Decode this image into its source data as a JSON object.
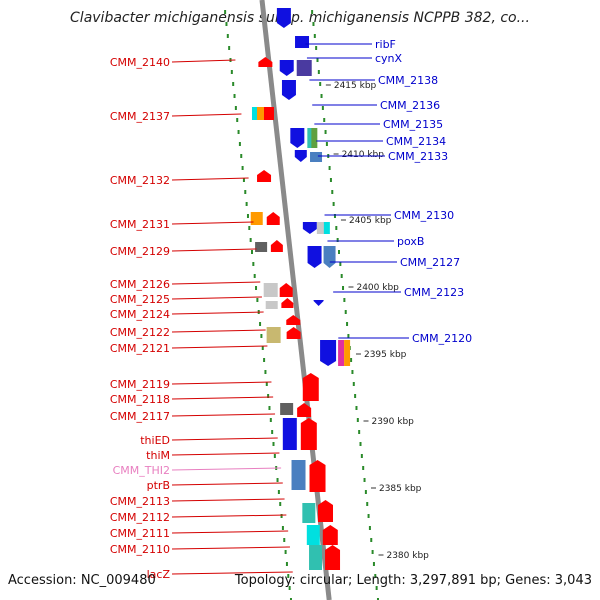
{
  "title": "Clavibacter michiganensis subsp. michiganensis NCPPB 382, co...",
  "footer": {
    "accession": "Accession: NC_009480",
    "topology": "Topology: circular; Length: 3,297,891 bp; Genes: 3,043"
  },
  "colors": {
    "reverse_strand_label": "#d40000",
    "forward_strand_label": "#0000cc",
    "pink_label": "#e87fc0",
    "axis": "#888888",
    "tick": "#2a8a2a"
  },
  "scale_labels": [
    "2415 kbp",
    "2410 kbp",
    "2405 kbp",
    "2400 kbp",
    "2395 kbp",
    "2390 kbp",
    "2385 kbp",
    "2380 kbp"
  ],
  "left_labels": [
    {
      "text": "CMM_2140",
      "color": "red"
    },
    {
      "text": "CMM_2137",
      "color": "red"
    },
    {
      "text": "CMM_2132",
      "color": "red"
    },
    {
      "text": "CMM_2131",
      "color": "red"
    },
    {
      "text": "CMM_2129",
      "color": "red"
    },
    {
      "text": "CMM_2126",
      "color": "red"
    },
    {
      "text": "CMM_2125",
      "color": "red"
    },
    {
      "text": "CMM_2124",
      "color": "red"
    },
    {
      "text": "CMM_2122",
      "color": "red"
    },
    {
      "text": "CMM_2121",
      "color": "red"
    },
    {
      "text": "CMM_2119",
      "color": "red"
    },
    {
      "text": "CMM_2118",
      "color": "red"
    },
    {
      "text": "CMM_2117",
      "color": "red"
    },
    {
      "text": "thiED",
      "color": "red"
    },
    {
      "text": "thiM",
      "color": "red"
    },
    {
      "text": "CMM_THI2",
      "color": "pink"
    },
    {
      "text": "ptrB",
      "color": "red"
    },
    {
      "text": "CMM_2113",
      "color": "red"
    },
    {
      "text": "CMM_2112",
      "color": "red"
    },
    {
      "text": "CMM_2111",
      "color": "red"
    },
    {
      "text": "CMM_2110",
      "color": "red"
    },
    {
      "text": "lacZ",
      "color": "red"
    }
  ],
  "right_labels": [
    {
      "text": "ribF"
    },
    {
      "text": "cynX"
    },
    {
      "text": "CMM_2138"
    },
    {
      "text": "CMM_2136"
    },
    {
      "text": "CMM_2135"
    },
    {
      "text": "CMM_2134"
    },
    {
      "text": "CMM_2133"
    },
    {
      "text": "CMM_2130"
    },
    {
      "text": "poxB"
    },
    {
      "text": "CMM_2127"
    },
    {
      "text": "CMM_2123"
    },
    {
      "text": "CMM_2120"
    }
  ],
  "gene_colors": {
    "red": "#ff0000",
    "blue": "#1010e0",
    "indigo": "#4a3aa0",
    "steel": "#4a7fc0",
    "cyan": "#00e0e0",
    "teal": "#30c0b0",
    "orange": "#ff9a00",
    "gray": "#808080",
    "lightgray": "#c8c8c8",
    "olive": "#c8b870",
    "magenta": "#e030a0",
    "green": "#60a040",
    "darkgray": "#606060"
  }
}
